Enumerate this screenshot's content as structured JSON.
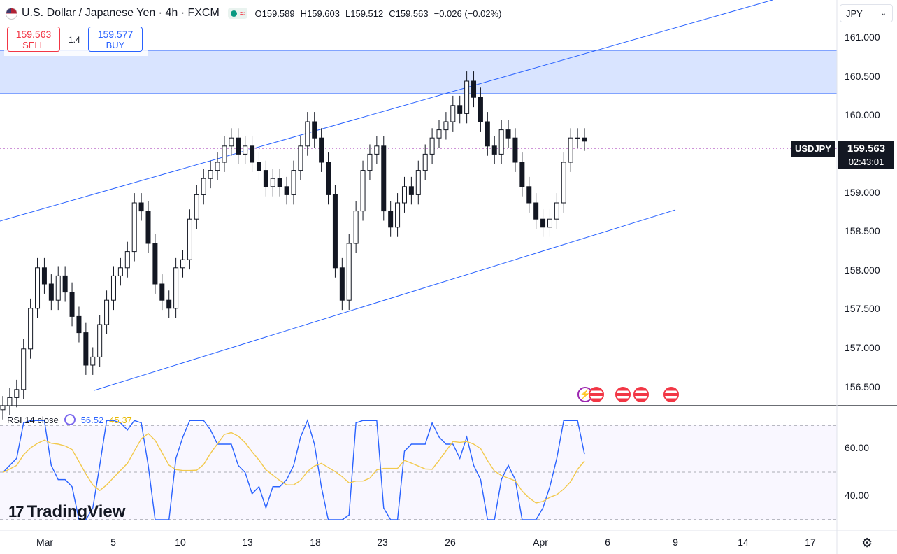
{
  "header": {
    "title": "U.S. Dollar / Japanese Yen · 4h · FXCM",
    "ohlc": [
      {
        "label": "O",
        "value": "159.589"
      },
      {
        "label": "H",
        "value": "159.603"
      },
      {
        "label": "L",
        "value": "159.512"
      },
      {
        "label": "C",
        "value": "159.563"
      }
    ],
    "change": "−0.026 (−0.02%)"
  },
  "trade": {
    "sell_price": "159.563",
    "sell_label": "SELL",
    "spread": "1.4",
    "buy_price": "159.577",
    "buy_label": "BUY"
  },
  "currency_selector": "JPY",
  "price_axis": [
    "161.000",
    "160.500",
    "160.000",
    "159.000",
    "158.500",
    "158.000",
    "157.500",
    "157.000",
    "156.500"
  ],
  "last_price": {
    "symbol": "USDJPY",
    "price": "159.563",
    "countdown": "02:43:01"
  },
  "rsi": {
    "label": "RSI 14 close",
    "value": "56.52",
    "ma_value": "45.37",
    "axis": [
      "60.00",
      "40.00"
    ]
  },
  "time_axis": [
    "Mar",
    "5",
    "10",
    "13",
    "18",
    "23",
    "26",
    "Apr",
    "6",
    "9",
    "14",
    "17"
  ],
  "logo_text": "TradingView",
  "colors": {
    "up": "#ffffff",
    "down": "#131722",
    "channel": "#2962ff",
    "zone": "#c7d6ff",
    "rsi": "#2962ff",
    "rsi_ma": "#f2c94c"
  },
  "chart_data": {
    "type": "candlestick",
    "symbol": "USDJPY",
    "timeframe": "4h",
    "ylim": [
      156.3,
      161.3
    ],
    "candles_approx_close": [
      156.3,
      156.4,
      156.5,
      157.0,
      157.5,
      158.0,
      157.8,
      157.6,
      157.9,
      157.7,
      157.4,
      157.2,
      156.8,
      156.9,
      157.3,
      157.6,
      157.9,
      158.0,
      158.2,
      158.8,
      158.7,
      158.3,
      157.8,
      157.6,
      157.5,
      158.0,
      158.1,
      158.6,
      158.9,
      159.1,
      159.2,
      159.3,
      159.5,
      159.6,
      159.4,
      159.5,
      159.3,
      159.2,
      159.0,
      159.1,
      159.0,
      158.9,
      159.2,
      159.5,
      159.8,
      159.6,
      159.3,
      158.9,
      158.0,
      157.6,
      158.3,
      158.7,
      159.2,
      159.4,
      159.5,
      158.7,
      158.5,
      158.8,
      159.0,
      158.9,
      159.2,
      159.4,
      159.6,
      159.7,
      159.8,
      160.0,
      159.9,
      160.3,
      160.1,
      159.8,
      159.5,
      159.4,
      159.7,
      159.6,
      159.3,
      159.0,
      158.8,
      158.6,
      158.5,
      158.6,
      158.8,
      159.3,
      159.6,
      159.6,
      159.56
    ],
    "channel_upper": {
      "from": [
        "start",
        158.7
      ],
      "to": [
        "Apr 4",
        161.3
      ]
    },
    "channel_lower": {
      "from": [
        "Mar 5",
        156.5
      ],
      "to": [
        "Apr 5",
        158.8
      ]
    },
    "resistance_zone": [
      160.28,
      160.85
    ],
    "current_price": 159.563,
    "rsi_period": 14,
    "rsi_levels": [
      70,
      50,
      30
    ]
  }
}
